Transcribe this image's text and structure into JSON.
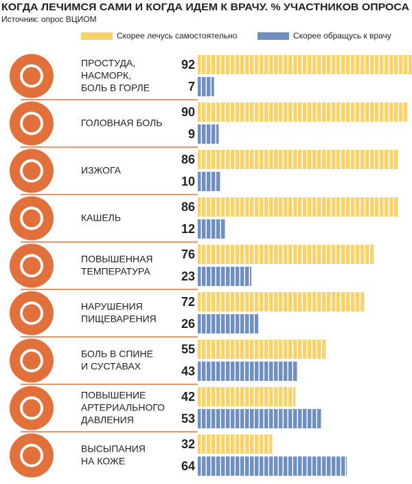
{
  "chart_data": {
    "type": "bar",
    "orientation": "horizontal",
    "title": "КОГДА ЛЕЧИМСЯ САМИ И КОГДА ИДЕМ К ВРАЧУ. % УЧАСТНИКОВ ОПРОСА",
    "subtitle": "Источник: опрос ВЦИОМ",
    "categories": [
      "ПРОСТУДА,\nНАСМОРК,\nБОЛЬ В ГОРЛЕ",
      "ГОЛОВНАЯ БОЛЬ",
      "ИЗЖОГА",
      "КАШЕЛЬ",
      "ПОВЫШЕННАЯ\nТЕМПЕРАТУРА",
      "НАРУШЕНИЯ\nПИЩЕВАРЕНИЯ",
      "БОЛЬ В СПИНЕ\nИ СУСТАВАХ",
      "ПОВЫШЕНИЕ\nАРТЕРИАЛЬНОГО\nДАВЛЕНИЯ",
      "ВЫСЫПАНИЯ\nНА КОЖЕ"
    ],
    "series": [
      {
        "name": "Скорее лечусь самостоятельно",
        "color": "#f8d36a",
        "values": [
          92,
          90,
          86,
          86,
          76,
          72,
          55,
          42,
          32
        ]
      },
      {
        "name": "Скорее обращусь к врачу",
        "color": "#6f8fc2",
        "values": [
          7,
          9,
          10,
          12,
          23,
          26,
          43,
          53,
          64
        ]
      }
    ]
  }
}
